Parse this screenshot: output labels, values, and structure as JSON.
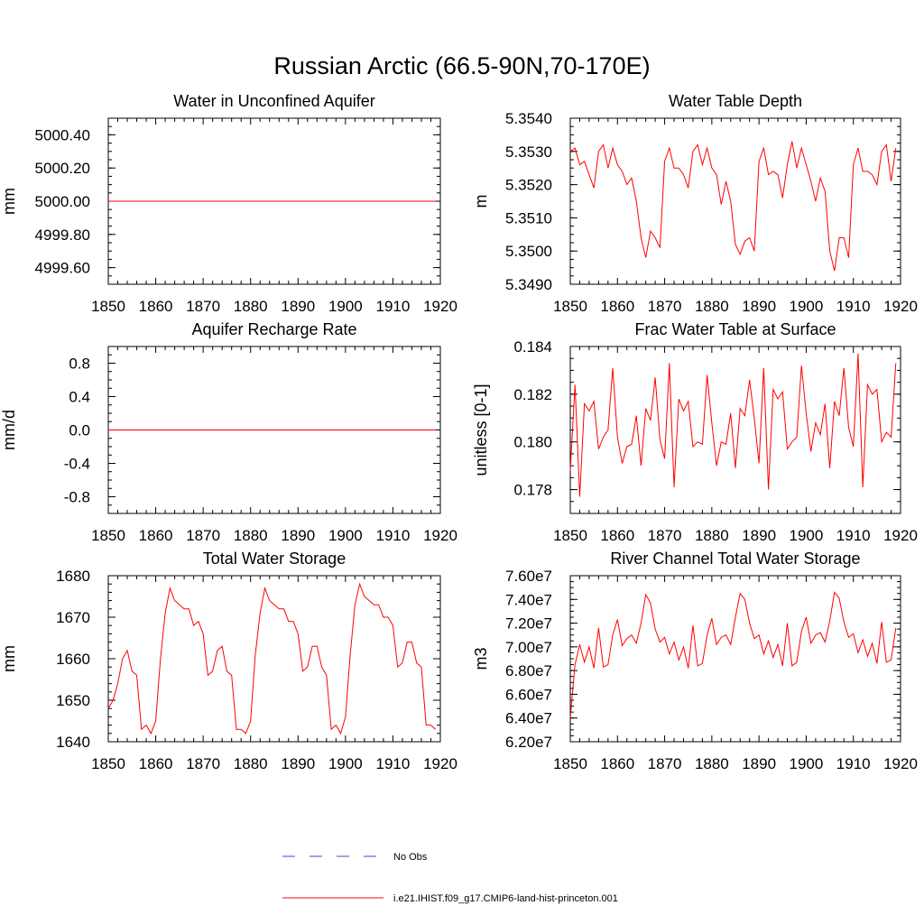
{
  "figure_title": "Russian Arctic (66.5-90N,70-170E)",
  "legend": {
    "entries": [
      {
        "label": "No Obs",
        "style": "dashed",
        "color": "#4444cc"
      },
      {
        "label": "i.e21.IHIST.f09_g17.CMIP6-land-hist-princeton.001",
        "style": "solid",
        "color": "#ff0000"
      }
    ]
  },
  "chart_data": [
    {
      "type": "line",
      "title": "Water in Unconfined Aquifer",
      "ylabel": "mm",
      "xlim": [
        1850,
        1920
      ],
      "ylim": [
        4999.5,
        5000.5
      ],
      "xticks": [
        1850,
        1860,
        1870,
        1880,
        1890,
        1900,
        1910,
        1920
      ],
      "yticks": [
        4999.6,
        4999.8,
        5000.0,
        5000.2,
        5000.4
      ],
      "ytick_labels": [
        "4999.60",
        "4999.80",
        "5000.00",
        "5000.20",
        "5000.40"
      ],
      "yminor": 0.05,
      "x_start": 1850,
      "color": "#ff0000",
      "values": [
        5000,
        5000,
        5000,
        5000,
        5000,
        5000,
        5000,
        5000,
        5000,
        5000,
        5000,
        5000,
        5000,
        5000,
        5000,
        5000,
        5000,
        5000,
        5000,
        5000,
        5000,
        5000,
        5000,
        5000,
        5000,
        5000,
        5000,
        5000,
        5000,
        5000,
        5000,
        5000,
        5000,
        5000,
        5000,
        5000,
        5000,
        5000,
        5000,
        5000,
        5000,
        5000,
        5000,
        5000,
        5000,
        5000,
        5000,
        5000,
        5000,
        5000,
        5000,
        5000,
        5000,
        5000,
        5000,
        5000,
        5000,
        5000,
        5000,
        5000,
        5000,
        5000,
        5000,
        5000,
        5000,
        5000,
        5000,
        5000,
        5000,
        5000
      ]
    },
    {
      "type": "line",
      "title": "Water Table Depth",
      "ylabel": "m",
      "xlim": [
        1850,
        1920
      ],
      "ylim": [
        5.349,
        5.354
      ],
      "xticks": [
        1850,
        1860,
        1870,
        1880,
        1890,
        1900,
        1910,
        1920
      ],
      "yticks": [
        5.349,
        5.35,
        5.351,
        5.352,
        5.353,
        5.354
      ],
      "ytick_labels": [
        "5.3490",
        "5.3500",
        "5.3510",
        "5.3520",
        "5.3530",
        "5.3540"
      ],
      "yminor": 0.00025,
      "x_start": 1850,
      "color": "#ff0000",
      "values": [
        5.353,
        5.3531,
        5.3526,
        5.3527,
        5.3523,
        5.3519,
        5.353,
        5.3532,
        5.3525,
        5.3531,
        5.3526,
        5.3524,
        5.352,
        5.3522,
        5.3515,
        5.3504,
        5.3498,
        5.3506,
        5.3504,
        5.3501,
        5.3527,
        5.3531,
        5.3525,
        5.3525,
        5.3523,
        5.3519,
        5.353,
        5.3532,
        5.3526,
        5.3531,
        5.3525,
        5.3523,
        5.3514,
        5.3521,
        5.3515,
        5.3502,
        5.3499,
        5.3503,
        5.3504,
        5.35,
        5.3527,
        5.3531,
        5.3523,
        5.3524,
        5.3523,
        5.3516,
        5.3526,
        5.3533,
        5.3525,
        5.3531,
        5.3526,
        5.3521,
        5.3515,
        5.3522,
        5.3518,
        5.35,
        5.3494,
        5.3504,
        5.3504,
        5.3498,
        5.3526,
        5.3531,
        5.3524,
        5.3524,
        5.3523,
        5.352,
        5.353,
        5.3532,
        5.3521,
        5.3531
      ]
    },
    {
      "type": "line",
      "title": "Aquifer Recharge Rate",
      "ylabel": "mm/d",
      "xlim": [
        1850,
        1920
      ],
      "ylim": [
        -1.0,
        1.0
      ],
      "xticks": [
        1850,
        1860,
        1870,
        1880,
        1890,
        1900,
        1910,
        1920
      ],
      "yticks": [
        -0.8,
        -0.4,
        0.0,
        0.4,
        0.8
      ],
      "ytick_labels": [
        "-0.8",
        "-0.4",
        "0.0",
        "0.4",
        "0.8"
      ],
      "yminor": 0.1,
      "x_start": 1850,
      "color": "#ff0000",
      "values": [
        0,
        0,
        0,
        0,
        0,
        0,
        0,
        0,
        0,
        0,
        0,
        0,
        0,
        0,
        0,
        0,
        0,
        0,
        0,
        0,
        0,
        0,
        0,
        0,
        0,
        0,
        0,
        0,
        0,
        0,
        0,
        0,
        0,
        0,
        0,
        0,
        0,
        0,
        0,
        0,
        0,
        0,
        0,
        0,
        0,
        0,
        0,
        0,
        0,
        0,
        0,
        0,
        0,
        0,
        0,
        0,
        0,
        0,
        0,
        0,
        0,
        0,
        0,
        0,
        0,
        0,
        0,
        0,
        0,
        0
      ]
    },
    {
      "type": "line",
      "title": "Frac Water Table at Surface",
      "ylabel": "unitless [0-1]",
      "xlim": [
        1850,
        1920
      ],
      "ylim": [
        0.177,
        0.184
      ],
      "xticks": [
        1850,
        1860,
        1870,
        1880,
        1890,
        1900,
        1910,
        1920
      ],
      "yticks": [
        0.178,
        0.18,
        0.182,
        0.184
      ],
      "ytick_labels": [
        "0.178",
        "0.180",
        "0.182",
        "0.184"
      ],
      "yminor": 0.0005,
      "x_start": 1850,
      "color": "#ff0000",
      "values": [
        0.1788,
        0.1824,
        0.1777,
        0.1816,
        0.1813,
        0.1817,
        0.1797,
        0.1802,
        0.1805,
        0.1831,
        0.1802,
        0.1791,
        0.1798,
        0.1799,
        0.1811,
        0.179,
        0.1814,
        0.1809,
        0.1827,
        0.1801,
        0.1793,
        0.1833,
        0.1781,
        0.1818,
        0.1813,
        0.1817,
        0.1798,
        0.18,
        0.1799,
        0.1828,
        0.1808,
        0.179,
        0.18,
        0.1799,
        0.1812,
        0.1789,
        0.1814,
        0.1811,
        0.1826,
        0.181,
        0.1791,
        0.1831,
        0.178,
        0.1822,
        0.1818,
        0.1821,
        0.1797,
        0.18,
        0.1802,
        0.1832,
        0.1812,
        0.1796,
        0.1808,
        0.1803,
        0.1816,
        0.1789,
        0.1817,
        0.1811,
        0.1831,
        0.1806,
        0.1798,
        0.1837,
        0.1781,
        0.1824,
        0.182,
        0.1822,
        0.18,
        0.1804,
        0.1802,
        0.1833
      ]
    },
    {
      "type": "line",
      "title": "Total Water Storage",
      "ylabel": "mm",
      "xlim": [
        1850,
        1920
      ],
      "ylim": [
        1640,
        1680
      ],
      "xticks": [
        1850,
        1860,
        1870,
        1880,
        1890,
        1900,
        1910,
        1920
      ],
      "yticks": [
        1640,
        1650,
        1660,
        1670,
        1680
      ],
      "ytick_labels": [
        "1640",
        "1650",
        "1660",
        "1670",
        "1680"
      ],
      "yminor": 2,
      "x_start": 1850,
      "color": "#ff0000",
      "values": [
        1648,
        1650,
        1654,
        1660,
        1662,
        1657,
        1656,
        1643,
        1644,
        1642,
        1645,
        1660,
        1671,
        1677,
        1674,
        1673,
        1672,
        1672,
        1668,
        1669,
        1666,
        1656,
        1657,
        1662,
        1663,
        1657,
        1656,
        1643,
        1643,
        1642,
        1645,
        1661,
        1671,
        1677,
        1674,
        1673,
        1672,
        1672,
        1669,
        1669,
        1666,
        1657,
        1658,
        1663,
        1663,
        1658,
        1656,
        1643,
        1644,
        1642,
        1646,
        1661,
        1673,
        1678,
        1675,
        1674,
        1673,
        1673,
        1670,
        1670,
        1668,
        1658,
        1659,
        1664,
        1664,
        1659,
        1658,
        1644,
        1644,
        1643
      ]
    },
    {
      "type": "line",
      "title": "River Channel Total Water Storage",
      "ylabel": "m3",
      "xlim": [
        1850,
        1920
      ],
      "ylim": [
        62000000,
        76000000
      ],
      "xticks": [
        1850,
        1860,
        1870,
        1880,
        1890,
        1900,
        1910,
        1920
      ],
      "yticks": [
        62000000,
        64000000,
        66000000,
        68000000,
        70000000,
        72000000,
        74000000,
        76000000
      ],
      "ytick_labels": [
        "6.20e7",
        "6.40e7",
        "6.60e7",
        "6.80e7",
        "7.00e7",
        "7.20e7",
        "7.40e7",
        "7.60e7"
      ],
      "yminor": 500000,
      "x_start": 1850,
      "color": "#ff0000",
      "values": [
        64000000,
        68500000,
        70200000,
        68700000,
        70000000,
        68200000,
        71600000,
        68300000,
        68500000,
        71000000,
        72300000,
        70100000,
        70700000,
        71000000,
        70300000,
        72000000,
        74400000,
        73700000,
        71500000,
        70400000,
        70800000,
        69400000,
        70400000,
        68900000,
        70000000,
        68200000,
        71800000,
        68400000,
        68600000,
        71000000,
        72400000,
        70200000,
        70800000,
        71000000,
        70200000,
        72500000,
        74500000,
        74000000,
        72000000,
        70700000,
        71000000,
        69400000,
        70500000,
        69100000,
        70200000,
        68400000,
        72000000,
        68400000,
        68700000,
        71300000,
        72500000,
        70300000,
        71000000,
        71200000,
        70400000,
        72200000,
        74600000,
        74100000,
        72100000,
        70800000,
        71100000,
        69500000,
        70600000,
        69200000,
        70300000,
        68600000,
        72100000,
        68700000,
        68900000,
        71600000
      ]
    }
  ]
}
